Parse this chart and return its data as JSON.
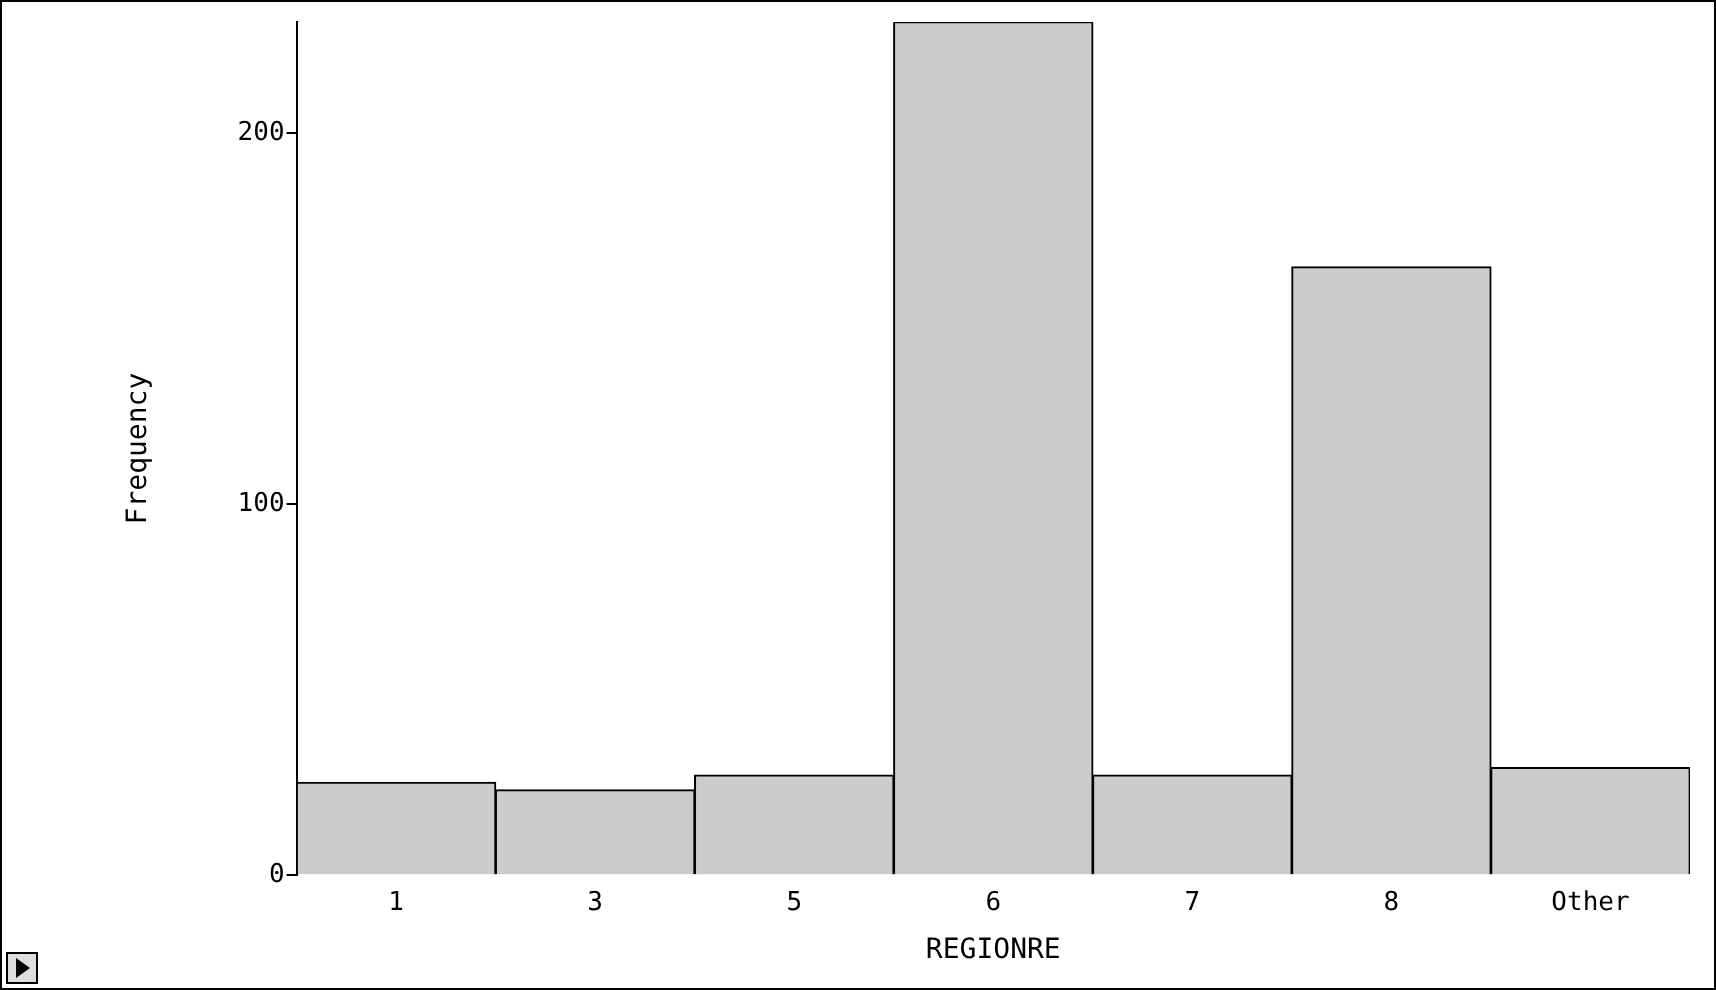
{
  "chart_data": {
    "type": "bar",
    "xlabel": "REGIONRE",
    "ylabel": "Frequency",
    "categories": [
      "1",
      "3",
      "5",
      "6",
      "7",
      "8",
      "Other"
    ],
    "values": [
      25,
      23,
      27,
      230,
      27,
      164,
      29
    ],
    "color": "#cccccc",
    "ylim": [
      0,
      230
    ],
    "yticks": [
      0,
      100,
      200
    ],
    "grid": false,
    "legend": false
  }
}
